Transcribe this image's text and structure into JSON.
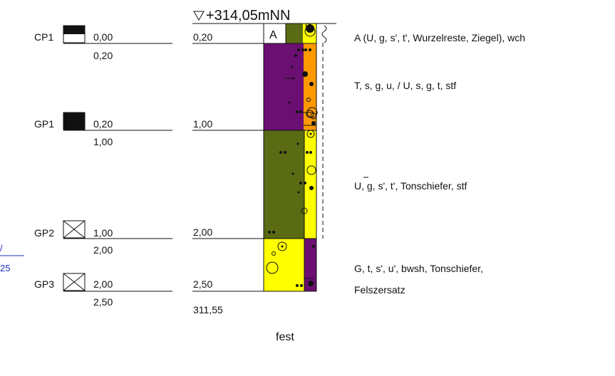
{
  "header": {
    "elevation": "+314,05mNN"
  },
  "samples": [
    {
      "id": "CP1",
      "top": "0,00",
      "bottom": "0,20",
      "symbol": "half-filled"
    },
    {
      "id": "GP1",
      "top": "0,20",
      "bottom": "1,00",
      "symbol": "filled"
    },
    {
      "id": "GP2",
      "top": "1,00",
      "bottom": "2,00",
      "symbol": "crossed"
    },
    {
      "id": "GP3",
      "top": "2,00",
      "bottom": "2,50",
      "symbol": "crossed"
    }
  ],
  "layers": [
    {
      "depth": "0,20",
      "description": "A (U, g, s', t', Wurzelreste, Ziegel), wch",
      "fill_left": "#ffffff",
      "fill_middle": "#5a6b14",
      "fill_right": "#ffff00",
      "code": "A"
    },
    {
      "depth": "1,00",
      "description": "T, s, g, u, / U, s, g, t, stf",
      "fill_left": "#6b0f73",
      "fill_right": "#ff9900"
    },
    {
      "depth": "2,00",
      "description": "U, g, s', t', Tonschiefer, stf",
      "fill_left": "#5a6b14",
      "fill_right": "#ffff00"
    },
    {
      "depth": "2,50",
      "description_lines": [
        "G, t, s', u', bwsh, Tonschiefer,",
        "Felszersatz"
      ],
      "fill_left": "#ffff00",
      "fill_right": "#6b0f73"
    }
  ],
  "bottom": {
    "elevation": "311,55",
    "consistency": "fest"
  },
  "edge_fragments": {
    "top": "/",
    "bottom": "25"
  }
}
